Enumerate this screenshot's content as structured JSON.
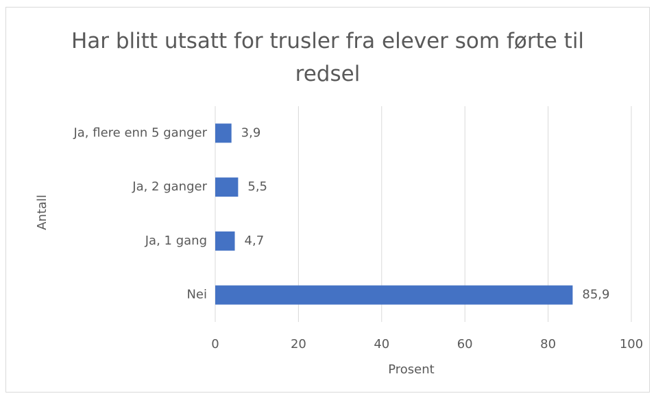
{
  "chart_data": {
    "type": "bar",
    "orientation": "horizontal",
    "title": "Har blitt utsatt for trusler fra elever som førte til redsel",
    "categories": [
      "Ja, flere enn 5 ganger",
      "Ja, 2 ganger",
      "Ja, 1 gang",
      "Nei"
    ],
    "values": [
      3.9,
      5.5,
      4.7,
      85.9
    ],
    "value_labels": [
      "3,9",
      "5,5",
      "4,7",
      "85,9"
    ],
    "color": "#4472c4",
    "xlim": [
      0,
      100
    ],
    "xticks": [
      0,
      20,
      40,
      60,
      80,
      100
    ],
    "xlabel": "Prosent",
    "ylabel": "Antall",
    "grid": true
  }
}
